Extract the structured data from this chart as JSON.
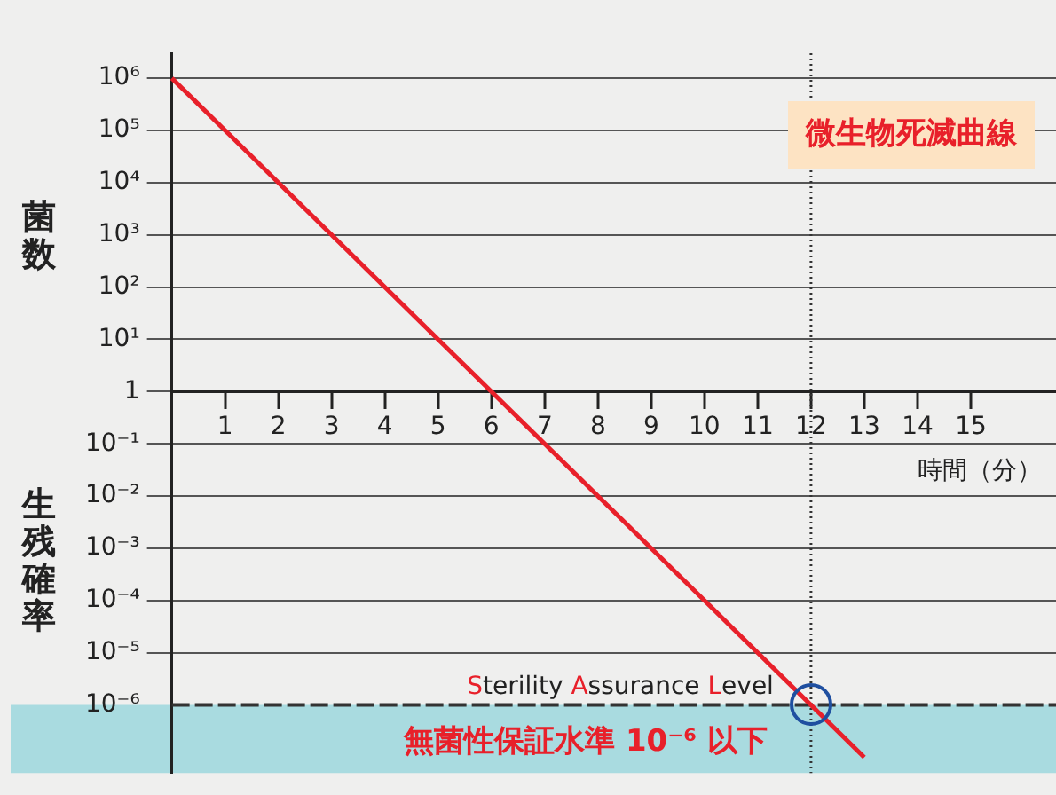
{
  "chart_data": {
    "type": "line",
    "ylabel": "菌数",
    "xlabel": "時間（分）",
    "annotations": [
      "微生物死滅曲線",
      "生残確率"
    ],
    "x": [
      0,
      13
    ],
    "series": [
      {
        "color": "#e8202a",
        "values": [
          1000000,
          1e-07
        ]
      }
    ],
    "log": "y",
    "xlim": [
      0,
      16.6
    ],
    "ylim": [
      5e-08,
      3000000
    ],
    "xticks": [
      1,
      2,
      3,
      4,
      5,
      6,
      7,
      8,
      9,
      10,
      11,
      12,
      13,
      14,
      15
    ],
    "yticks": [
      {
        "value": 1000000,
        "label": "10⁶"
      },
      {
        "value": 100000,
        "label": "10⁵"
      },
      {
        "value": 10000,
        "label": "10⁴"
      },
      {
        "value": 1000,
        "label": "10³"
      },
      {
        "value": 100,
        "label": "10²"
      },
      {
        "value": 10,
        "label": "10¹"
      },
      1,
      {
        "value": 0.1,
        "label": "10⁻¹"
      },
      {
        "value": 0.01,
        "label": "10⁻²"
      },
      {
        "value": 0.001,
        "label": "10⁻³"
      },
      {
        "value": 0.0001,
        "label": "10⁻⁴"
      },
      {
        "value": 1e-05,
        "label": "10⁻⁵"
      },
      {
        "value": 1e-06,
        "label": "10⁻⁶"
      }
    ],
    "grid": "y",
    "legend": false,
    "marker": "none",
    "line_style": "solid",
    "ref_lines": [
      {
        "axis": "y",
        "value": 1e-06,
        "label": "Sterility Assurance Level",
        "line_style": "dashed",
        "color": "#333333"
      },
      {
        "axis": "x",
        "value": 12,
        "line_style": "dotted",
        "color": "#333333"
      }
    ],
    "bands": [
      {
        "axis": "y",
        "from": 5e-08,
        "to": 1e-06,
        "label": "無菌性保証水準 10⁻⁶ 以下",
        "color": "#a9dbe0"
      }
    ]
  }
}
